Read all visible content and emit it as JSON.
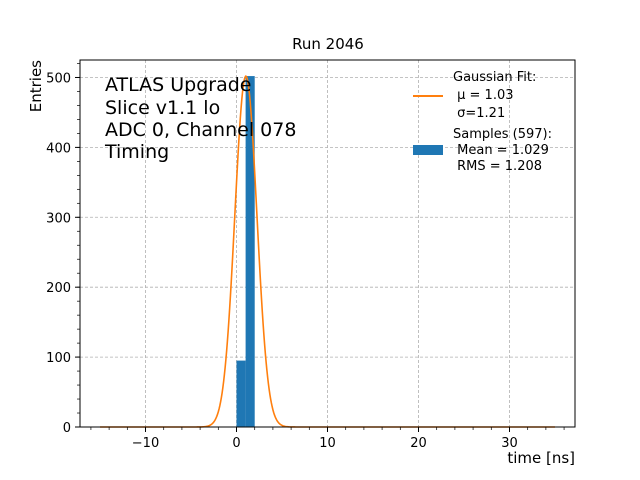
{
  "chart_data": {
    "type": "bar",
    "title": "Run 2046",
    "xlabel": "time [ns]",
    "ylabel": "Entries",
    "xlim": [
      -17.2,
      37.2
    ],
    "ylim": [
      0,
      525
    ],
    "xticks": [
      -10,
      0,
      10,
      20,
      30
    ],
    "yticks": [
      0,
      100,
      200,
      300,
      400,
      500
    ],
    "grid": true,
    "annotation_lines": [
      "ATLAS Upgrade",
      "Slice v1.1 lo",
      "ADC 0, Channel 078",
      "Timing"
    ],
    "histogram": {
      "bin_edges": [
        0,
        1,
        2
      ],
      "counts": [
        95,
        502
      ],
      "color": "#1f77b4"
    },
    "fit": {
      "mu": 1.03,
      "sigma": 1.21,
      "amplitude": 502,
      "x_range": [
        -15,
        35
      ],
      "color": "#ff7f0e"
    },
    "legend": {
      "placement": "top-right",
      "fit_lines": [
        "Gaussian Fit:",
        " μ = 1.03",
        " σ=1.21"
      ],
      "samples_lines": [
        "Samples (597):",
        " Mean = 1.029",
        " RMS = 1.208"
      ]
    }
  }
}
